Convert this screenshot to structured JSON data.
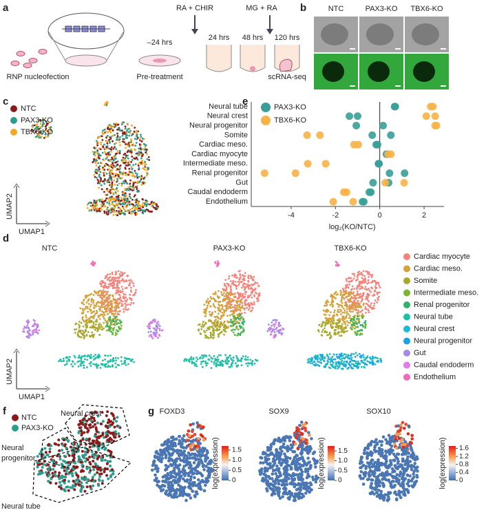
{
  "figure": {
    "panel_labels": [
      "a",
      "b",
      "c",
      "d",
      "e",
      "f",
      "g"
    ],
    "panel_a": {
      "step1": "RNP nucleofection",
      "step2": "Pre-treatment",
      "pre_time": "–24 hrs",
      "treatment1": "RA + CHIR",
      "time1": "24 hrs",
      "time2": "48 hrs",
      "treatment2": "MG + RA",
      "time3": "120 hrs",
      "step3": "scRNA-seq"
    },
    "panel_b": {
      "columns": [
        "NTC",
        "PAX3-KO",
        "TBX6-KO"
      ]
    },
    "panel_c": {
      "legend": [
        {
          "label": "NTC",
          "color": "#8b1a1a"
        },
        {
          "label": "PAX3-KO",
          "color": "#2a9d8f"
        },
        {
          "label": "TBX6-KO",
          "color": "#f5a623"
        }
      ],
      "x_axis": "UMAP1",
      "y_axis": "UMAP2"
    },
    "panel_d": {
      "titles": [
        "NTC",
        "PAX3-KO",
        "TBX6-KO"
      ],
      "legend": [
        {
          "label": "Cardiac myocyte",
          "color": "#f4837b"
        },
        {
          "label": "Cardiac meso.",
          "color": "#d4a13a"
        },
        {
          "label": "Somite",
          "color": "#a8a82a"
        },
        {
          "label": "Intermediate meso.",
          "color": "#7ab72f"
        },
        {
          "label": "Renal progenitor",
          "color": "#2db36a"
        },
        {
          "label": "Neural tube",
          "color": "#1fbfa6"
        },
        {
          "label": "Neural crest",
          "color": "#18bcd5"
        },
        {
          "label": "Neural progenitor",
          "color": "#1aa2e6"
        },
        {
          "label": "Gut",
          "color": "#a58be8"
        },
        {
          "label": "Caudal endoderm",
          "color": "#e27be6"
        },
        {
          "label": "Endothelium",
          "color": "#f06ab8"
        }
      ],
      "x_axis": "UMAP1",
      "y_axis": "UMAP2"
    },
    "panel_f": {
      "legend": [
        {
          "label": "NTC",
          "color": "#8b1a1a"
        },
        {
          "label": "PAX3-KO",
          "color": "#2a9d8f"
        }
      ],
      "neural_crest": "Neural crest",
      "neural_progenitor": [
        "Neural",
        "progenitor"
      ],
      "neural_tube": "Neural tube"
    },
    "panel_g": {
      "colorbar_label": "log(expression)",
      "genes": [
        {
          "name": "FOXD3",
          "lim": [
            0,
            1.7
          ],
          "ticks": [
            0,
            0.5,
            {
              "value": 1,
              "label": "1.0"
            },
            1.5
          ]
        },
        {
          "name": "SOX9",
          "lim": [
            0,
            1.75
          ],
          "ticks": [
            0,
            0.5,
            {
              "value": 1,
              "label": "1.0"
            },
            1.5
          ]
        },
        {
          "name": "SOX10",
          "lim": [
            0,
            1.72
          ],
          "ticks": [
            0,
            0.4,
            0.8,
            1.2,
            1.6
          ]
        }
      ]
    }
  },
  "chart_data": {
    "type": "dot",
    "categories": [
      "Neural tube",
      "Neural crest",
      "Neural progenitor",
      "Somite",
      "Cardiac meso.",
      "Cardiac myocyte",
      "Intermediate meso.",
      "Renal progenitor",
      "Gut",
      "Caudal endoderm",
      "Endothelium"
    ],
    "series": [
      {
        "name": "PAX3-KO",
        "color": "#3a9e98",
        "values": [
          [
            0.67,
            0.7
          ],
          [
            -1.37,
            -1.0
          ],
          [
            -1.06,
            0.15
          ],
          [
            -0.34,
            0.5
          ],
          [
            -0.16,
            -0.1
          ],
          [
            0.3,
            0.35
          ],
          [
            -0.06,
            -0.03
          ],
          [
            0.44,
            1.12
          ],
          [
            -0.3,
            0.4
          ],
          [
            -0.47,
            -0.4
          ],
          [
            -0.78,
            -0.72
          ]
        ]
      },
      {
        "name": "TBX6-KO",
        "color": "#f7b347",
        "values": [
          [
            2.3,
            2.4
          ],
          [
            2.1,
            2.5
          ],
          [
            2.5,
            2.56
          ],
          [
            -3.28,
            -2.7
          ],
          [
            -1.16,
            -0.97
          ],
          [
            0.37,
            0.5
          ],
          [
            -3.25,
            -2.44
          ],
          [
            -5.2,
            -3.8
          ],
          [
            0.25,
            1.1
          ],
          [
            -1.62,
            -1.5
          ],
          [
            -2.1,
            -1.2
          ]
        ]
      }
    ],
    "xlim": [
      -5.8,
      2.9
    ],
    "xticks": [
      -4,
      -2,
      0,
      2
    ],
    "xlabel": "log₂(KO/NTC)"
  }
}
